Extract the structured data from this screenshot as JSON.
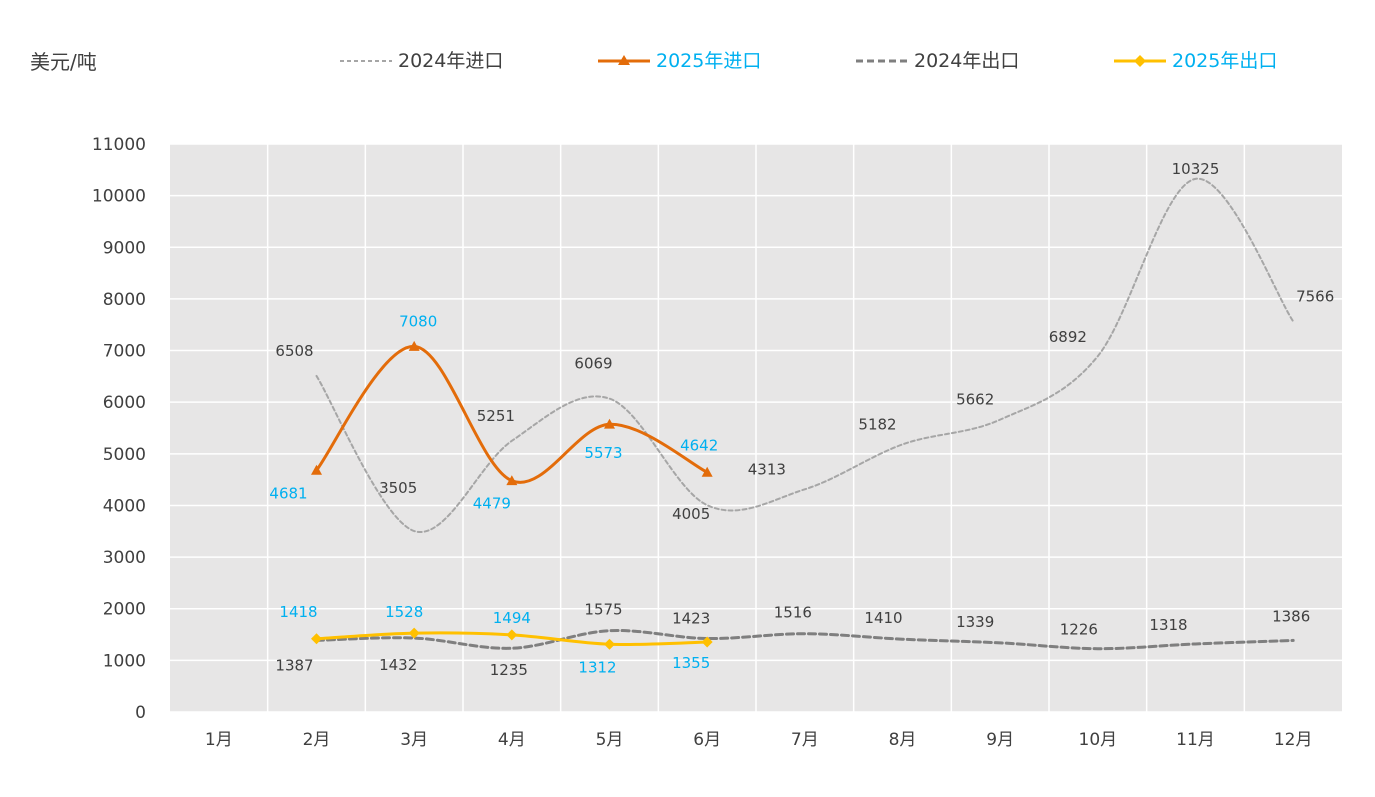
{
  "chart_data": {
    "type": "line",
    "ylabel": "美元/吨",
    "categories": [
      "1月",
      "2月",
      "3月",
      "4月",
      "5月",
      "6月",
      "7月",
      "8月",
      "9月",
      "10月",
      "11月",
      "12月"
    ],
    "ylim": [
      0,
      11000
    ],
    "yticks": [
      0,
      1000,
      2000,
      3000,
      4000,
      5000,
      6000,
      7000,
      8000,
      9000,
      10000,
      11000
    ],
    "grid": true,
    "legend_position": "top",
    "series": [
      {
        "name": "2024年进口",
        "values": [
          null,
          6508,
          3505,
          5251,
          6069,
          4005,
          4313,
          5182,
          5662,
          6892,
          10325,
          7566
        ],
        "color": "#A6A6A6",
        "style": "dashed-thin",
        "marker": "none",
        "label_color": "#404040"
      },
      {
        "name": "2025年进口",
        "values": [
          null,
          4681,
          7080,
          4479,
          5573,
          4642,
          null,
          null,
          null,
          null,
          null,
          null
        ],
        "color": "#E36C0A",
        "style": "solid",
        "marker": "triangle",
        "label_color": "#00B0F0"
      },
      {
        "name": "2024年出口",
        "values": [
          null,
          1387,
          1432,
          1235,
          1575,
          1423,
          1516,
          1410,
          1339,
          1226,
          1318,
          1386
        ],
        "color": "#7F7F7F",
        "style": "dashed-thick",
        "marker": "none",
        "label_color": "#404040"
      },
      {
        "name": "2025年出口",
        "values": [
          null,
          1418,
          1528,
          1494,
          1312,
          1355,
          null,
          null,
          null,
          null,
          null,
          null
        ],
        "color": "#FFC000",
        "style": "solid",
        "marker": "diamond",
        "label_color": "#00B0F0"
      }
    ]
  },
  "colors": {
    "plot_bg": "#E7E6E6",
    "grid": "#FFFFFF",
    "axis_text": "#404040",
    "legend_2025_text": "#00B0F0"
  }
}
